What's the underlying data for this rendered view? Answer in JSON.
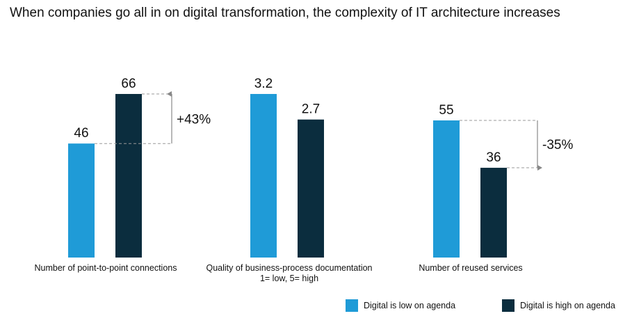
{
  "chart_data": {
    "type": "bar",
    "title": "When companies go all in on digital transformation, the complexity of IT architecture increases",
    "groups": [
      {
        "label": "Number of point-to-point connections",
        "sublabel": "",
        "values": [
          46,
          66
        ],
        "value_labels": [
          "46",
          "66"
        ],
        "annotation": "+43%"
      },
      {
        "label": "Quality of business-process documentation",
        "sublabel": "1= low, 5= high",
        "values": [
          3.2,
          2.7
        ],
        "value_labels": [
          "3.2",
          "2.7"
        ],
        "annotation": ""
      },
      {
        "label": "Number of reused services",
        "sublabel": "",
        "values": [
          55,
          36
        ],
        "value_labels": [
          "55",
          "36"
        ],
        "annotation": "-35%"
      }
    ],
    "series": [
      {
        "name": "Digital is low on agenda",
        "color": "#1f9bd7"
      },
      {
        "name": "Digital is high on agenda",
        "color": "#0b2d3e"
      }
    ],
    "grid": false,
    "legend": "bottom-right"
  }
}
